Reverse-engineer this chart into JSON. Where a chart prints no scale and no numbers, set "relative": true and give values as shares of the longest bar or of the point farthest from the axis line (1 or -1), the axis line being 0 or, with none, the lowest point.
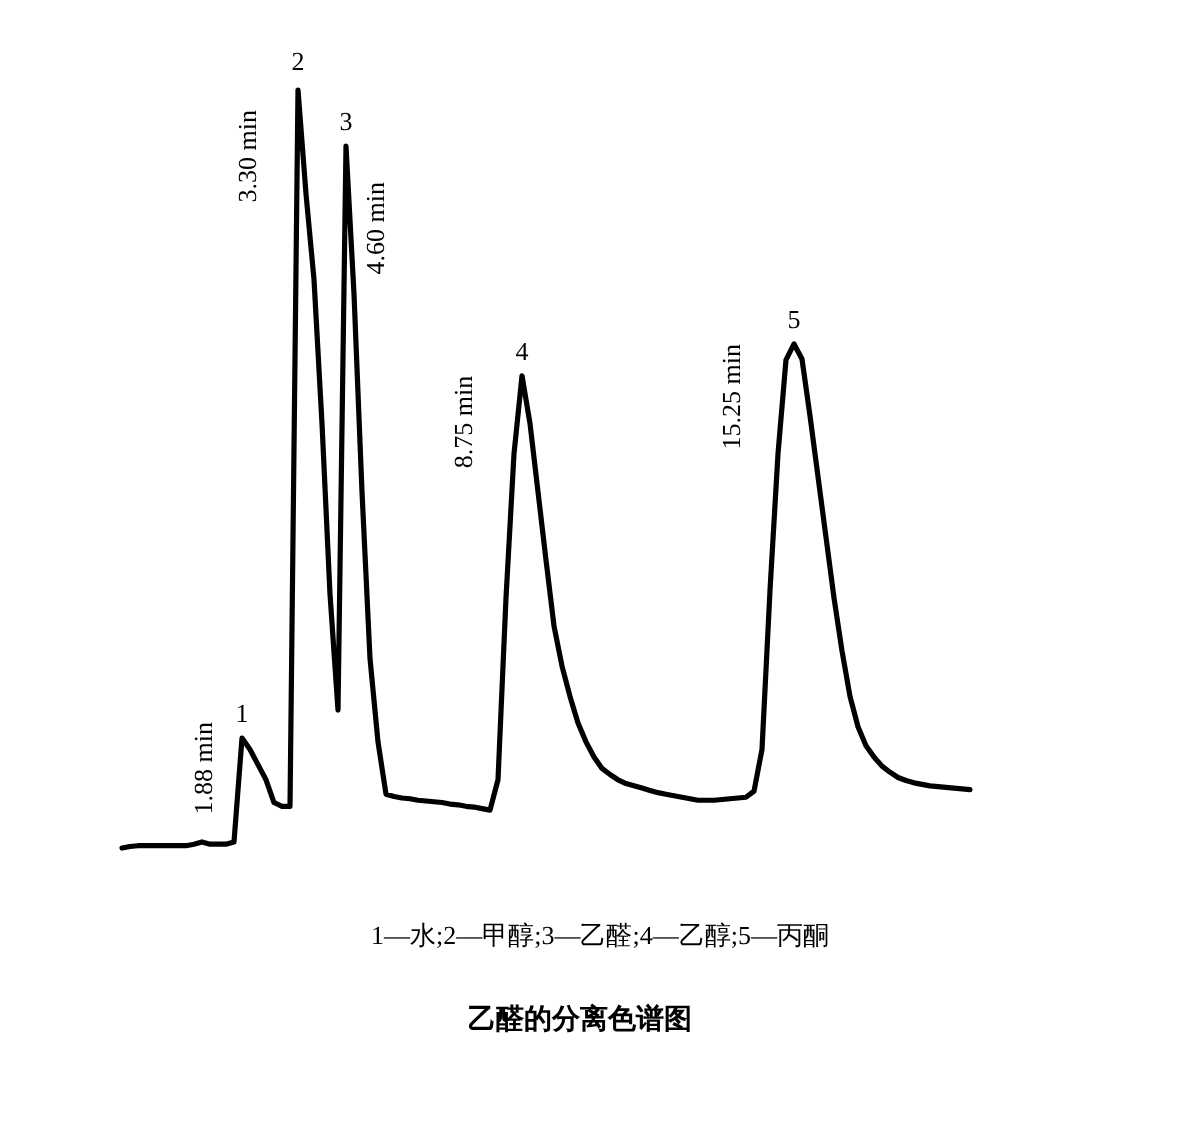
{
  "chart_data": {
    "type": "line",
    "relative": true,
    "title": "乙醛的分离色谱图",
    "categories": [
      null,
      null,
      null,
      null,
      null,
      null,
      null,
      null,
      null,
      null,
      null,
      null,
      null,
      null,
      null,
      null,
      null,
      null,
      null,
      null,
      null,
      null,
      null,
      null,
      null,
      null,
      null,
      null,
      null,
      null,
      null,
      null,
      null,
      null,
      null,
      null,
      null,
      null,
      null,
      null,
      null,
      null,
      null,
      null,
      null,
      null,
      null,
      null,
      null,
      null,
      null,
      null,
      null,
      null,
      null,
      null,
      null,
      null,
      null,
      null,
      null,
      null,
      null,
      null,
      null,
      null,
      null,
      null,
      null,
      null,
      null,
      null,
      null,
      null,
      null,
      null,
      null,
      null,
      null,
      null,
      null,
      null,
      null,
      null,
      null,
      null,
      null,
      null,
      null,
      null,
      null,
      null,
      null,
      null,
      null,
      null,
      null,
      null,
      null,
      null,
      null,
      null,
      null,
      null,
      null,
      null,
      null
    ],
    "series": [
      {
        "color": "#000000",
        "values": [
          0,
          0.002,
          0.003,
          0.003,
          0.003,
          0.003,
          0.003,
          0.003,
          0.003,
          0.005,
          0.008,
          0.005,
          0.005,
          0.005,
          0.008,
          0.145,
          0.13,
          0.11,
          0.09,
          0.06,
          0.055,
          0.055,
          1,
          0.863,
          0.75,
          0.56,
          0.335,
          0.182,
          0.926,
          0.731,
          0.47,
          0.25,
          0.14,
          0.071,
          0.068,
          0.066,
          0.065,
          0.063,
          0.062,
          0.061,
          0.06,
          0.058,
          0.057,
          0.055,
          0.054,
          0.052,
          0.05,
          0.09,
          0.33,
          0.52,
          0.623,
          0.56,
          0.47,
          0.38,
          0.293,
          0.24,
          0.2,
          0.165,
          0.14,
          0.12,
          0.105,
          0.097,
          0.09,
          0.085,
          0.082,
          0.079,
          0.076,
          0.073,
          0.071,
          0.069,
          0.067,
          0.065,
          0.063,
          0.063,
          0.063,
          0.064,
          0.065,
          0.066,
          0.067,
          0.075,
          0.13,
          0.34,
          0.52,
          0.644,
          0.665,
          0.645,
          0.57,
          0.49,
          0.41,
          0.33,
          0.26,
          0.2,
          0.16,
          0.135,
          0.12,
          0.108,
          0.1,
          0.093,
          0.089,
          0.086,
          0.084,
          0.082,
          0.081,
          0.08,
          0.079,
          0.078,
          0.077
        ]
      }
    ],
    "annotations": [
      {
        "text": "1"
      },
      {
        "text": "1.88 min"
      },
      {
        "text": "2"
      },
      {
        "text": "3.30 min"
      },
      {
        "text": "3"
      },
      {
        "text": "4.60 min"
      },
      {
        "text": "4"
      },
      {
        "text": "8.75 min"
      },
      {
        "text": "5"
      },
      {
        "text": "15.25 min"
      },
      "1—水;2—甲醇;3—乙醛;4—乙醇;5—丙酮"
    ]
  }
}
